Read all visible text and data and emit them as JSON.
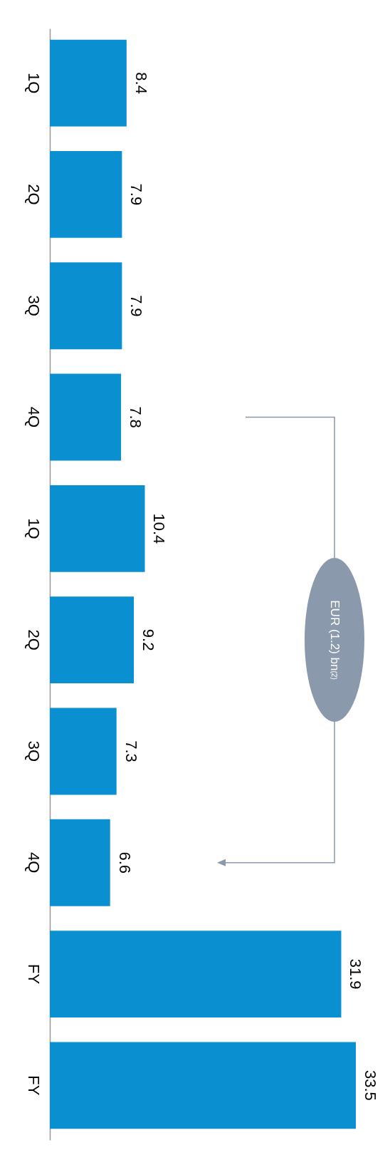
{
  "chart_data": {
    "type": "bar",
    "orientation": "horizontal",
    "categories": [
      "1Q",
      "2Q",
      "3Q",
      "4Q",
      "1Q",
      "2Q",
      "3Q",
      "4Q",
      "FY",
      "FY"
    ],
    "values": [
      8.4,
      7.9,
      7.9,
      7.8,
      10.4,
      9.2,
      7.3,
      6.6,
      31.9,
      33.5
    ],
    "color": "#0a8fd0",
    "data_labels": true,
    "annotations": [
      "EUR (1.2) bn$^{(2)}$"
    ]
  }
}
